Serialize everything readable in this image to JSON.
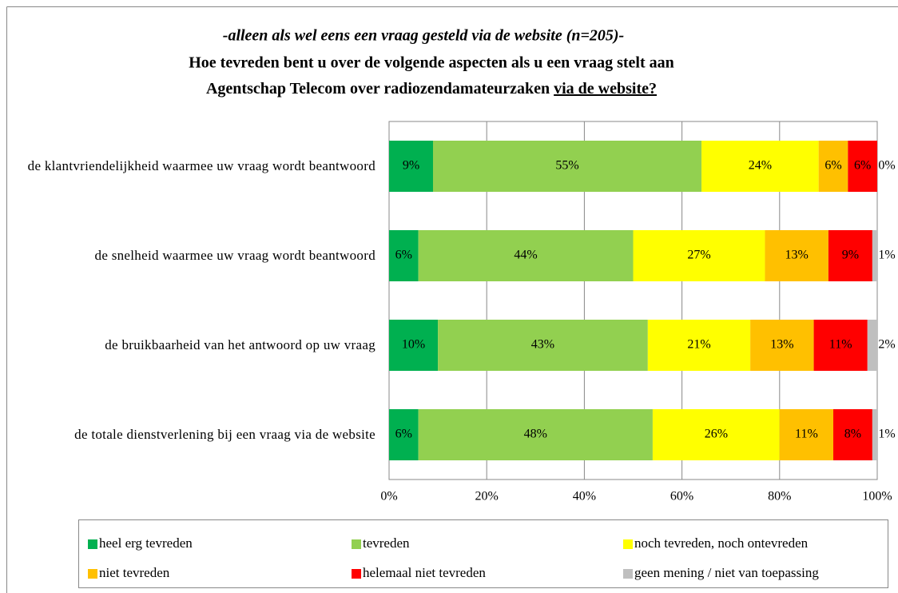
{
  "chart_data": {
    "type": "stacked_barh",
    "subtitle": "-alleen als wel eens een vraag gesteld via de website (n=205)-",
    "title": {
      "line1": "Hoe tevreden bent u over de volgende aspecten als u een vraag stelt aan",
      "line2": "Agentschap Telecom over radiozendamateurzaken",
      "underlined": "via de website?"
    },
    "categories": [
      "de klantvriendelijkheid waarmee uw vraag wordt beantwoord",
      "de snelheid waarmee uw vraag wordt beantwoord",
      "de bruikbaarheid van het antwoord op uw vraag",
      "de totale dienstverlening bij een vraag via de website"
    ],
    "series": [
      {
        "name": "heel erg tevreden",
        "color": "#00b050",
        "values": [
          9,
          6,
          10,
          6
        ],
        "value_labels": [
          "9%",
          "6%",
          "10%",
          "6%"
        ]
      },
      {
        "name": "tevreden",
        "color": "#92d050",
        "values": [
          55,
          44,
          43,
          48
        ],
        "value_labels": [
          "55%",
          "44%",
          "43%",
          "48%"
        ]
      },
      {
        "name": "noch tevreden, noch ontevreden",
        "color": "#ffff00",
        "values": [
          24,
          27,
          21,
          26
        ],
        "value_labels": [
          "24%",
          "27%",
          "21%",
          "26%"
        ]
      },
      {
        "name": "niet tevreden",
        "color": "#ffc000",
        "values": [
          6,
          13,
          13,
          11
        ],
        "value_labels": [
          "6%",
          "13%",
          "13%",
          "11%"
        ]
      },
      {
        "name": "helemaal niet tevreden",
        "color": "#ff0000",
        "values": [
          6,
          9,
          11,
          8
        ],
        "value_labels": [
          "6%",
          "9%",
          "11%",
          "8%"
        ]
      },
      {
        "name": "geen mening / niet van toepassing",
        "color": "#bfbfbf",
        "values": [
          0,
          1,
          2,
          1
        ],
        "value_labels": [
          "0%",
          "1%",
          "2%",
          "1%"
        ]
      }
    ],
    "xlim": [
      0,
      100
    ],
    "xticks": [
      {
        "value": 0,
        "label": "0%"
      },
      {
        "value": 20,
        "label": "20%"
      },
      {
        "value": 40,
        "label": "40%"
      },
      {
        "value": 60,
        "label": "60%"
      },
      {
        "value": 80,
        "label": "80%"
      },
      {
        "value": 100,
        "label": "100%"
      }
    ],
    "grid": true,
    "legend": "bottom"
  }
}
